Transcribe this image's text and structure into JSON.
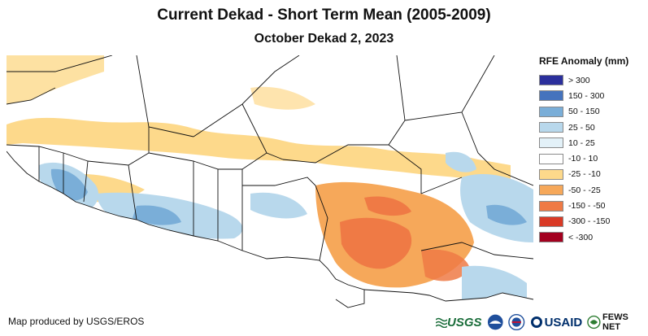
{
  "title": "Current Dekad - Short Term Mean (2005-2009)",
  "subtitle": "October Dekad 2, 2023",
  "legend": {
    "title": "RFE Anomaly (mm)",
    "items": [
      {
        "label": "> 300",
        "color": "#2b2f9c"
      },
      {
        "label": "150 - 300",
        "color": "#4573bd"
      },
      {
        "label": "50 - 150",
        "color": "#7aaed8"
      },
      {
        "label": "25 - 50",
        "color": "#b8d8ec"
      },
      {
        "label": "10 - 25",
        "color": "#e3f1f8"
      },
      {
        "label": "-10 - 10",
        "color": "#ffffff"
      },
      {
        "label": "-25 - -10",
        "color": "#fdd98b"
      },
      {
        "label": "-50 - -25",
        "color": "#f6a85a"
      },
      {
        "label": "-150 - -50",
        "color": "#ef7a45"
      },
      {
        "label": "-300 - -150",
        "color": "#d93a26"
      },
      {
        "label": "< -300",
        "color": "#a3001f"
      }
    ]
  },
  "credit": "Map produced by USGS/EROS",
  "logos": {
    "usgs": "USGS",
    "usaid": "USAID",
    "fewsnet": "FEWS NET"
  }
}
